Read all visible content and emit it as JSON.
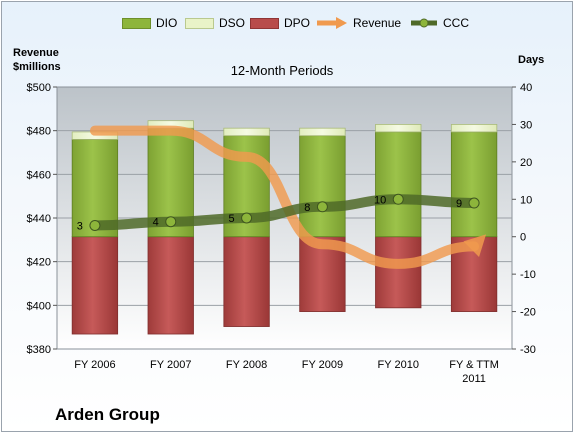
{
  "legend": [
    {
      "label": "DIO",
      "kind": "bar",
      "color": "#8db53b"
    },
    {
      "label": "DSO",
      "kind": "bar",
      "color": "#e9f3c8"
    },
    {
      "label": "DPO",
      "kind": "bar",
      "color": "#b84c4b"
    },
    {
      "label": "Revenue",
      "kind": "arrow",
      "color": "#f09a4e"
    },
    {
      "label": "CCC",
      "kind": "line",
      "color": "#4f6a28"
    }
  ],
  "left_axis_title": {
    "line1": "Revenue",
    "line2": "$millions"
  },
  "right_axis_title": "Days",
  "company": "Arden Group",
  "chart_data": {
    "type": "bar",
    "title": "12-Month Periods",
    "categories": [
      "FY 2006",
      "FY 2007",
      "FY 2008",
      "FY 2009",
      "FY 2010",
      "FY & TTM 2011"
    ],
    "left_axis": {
      "min": 380,
      "max": 500,
      "step": 20,
      "prefix": "$"
    },
    "right_axis": {
      "min": -30,
      "max": 40,
      "step": 10
    },
    "series": [
      {
        "name": "DPO",
        "unit": "days",
        "values": [
          -26,
          -26,
          -24,
          -20,
          -19,
          -20
        ]
      },
      {
        "name": "DIO",
        "unit": "days",
        "values": [
          26,
          29,
          27,
          27,
          28,
          28
        ]
      },
      {
        "name": "DSO",
        "unit": "days",
        "values": [
          2,
          2,
          2,
          2,
          2,
          2
        ]
      },
      {
        "name": "Revenue",
        "unit": "$millions",
        "values": [
          480,
          480,
          468,
          428,
          419,
          427
        ]
      },
      {
        "name": "CCC",
        "unit": "days",
        "values": [
          3,
          4,
          5,
          8,
          10,
          9
        ],
        "labels": [
          "3",
          "4",
          "5",
          "8",
          "10",
          "9"
        ]
      }
    ],
    "grid": true
  }
}
